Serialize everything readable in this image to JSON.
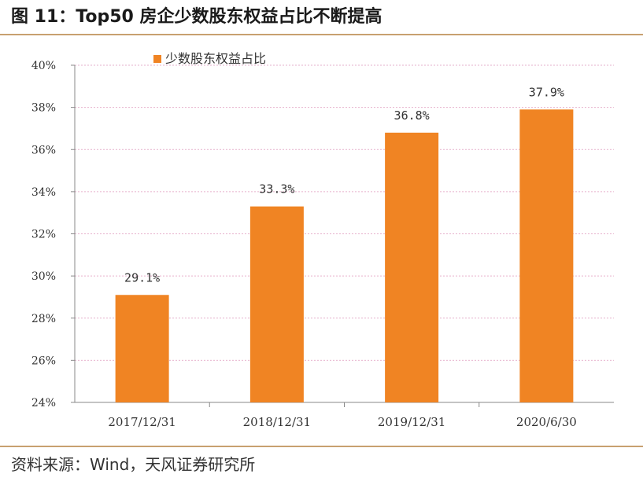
{
  "header": {
    "title": "图 11：Top50 房企少数股东权益占比不断提高"
  },
  "footer": {
    "source": "资料来源：Wind，天风证券研究所"
  },
  "colors": {
    "bar": "#f08423",
    "accent_rule": "#c8a070",
    "grid": "#e6b0cc"
  },
  "chart_data": {
    "type": "bar",
    "categories": [
      "2017/12/31",
      "2018/12/31",
      "2019/12/31",
      "2020/6/30"
    ],
    "series": [
      {
        "name": "少数股东权益占比",
        "values": [
          29.1,
          33.3,
          36.8,
          37.9
        ],
        "data_labels": [
          "29.1%",
          "33.3%",
          "36.8%",
          "37.9%"
        ]
      }
    ],
    "ylim": [
      24,
      40
    ],
    "yticks": [
      24,
      26,
      28,
      30,
      32,
      34,
      36,
      38,
      40
    ],
    "ytick_labels": [
      "24%",
      "26%",
      "28%",
      "30%",
      "32%",
      "34%",
      "36%",
      "38%",
      "40%"
    ],
    "grid": true,
    "legend": "top-left"
  }
}
